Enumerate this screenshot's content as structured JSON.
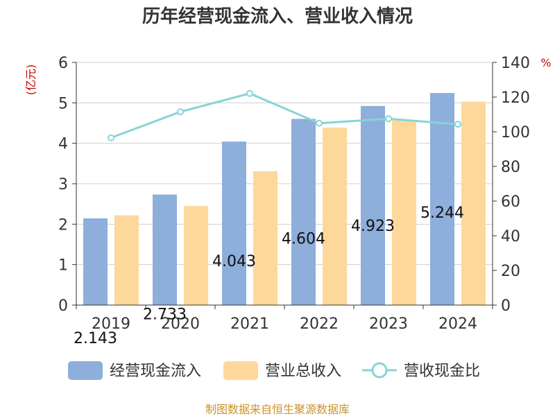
{
  "chart_data": {
    "type": "bar",
    "title": "历年经营现金流入、营业收入情况",
    "categories": [
      "2019",
      "2020",
      "2021",
      "2022",
      "2023",
      "2024"
    ],
    "series": [
      {
        "name": "经营现金流入",
        "kind": "bar",
        "axis": "left",
        "color": "#8eaedb",
        "values": [
          2.143,
          2.733,
          4.043,
          4.604,
          4.923,
          5.244
        ],
        "labels": [
          "2.143",
          "2.733",
          "4.043",
          "4.604",
          "4.923",
          "5.244"
        ]
      },
      {
        "name": "营业总收入",
        "kind": "bar",
        "axis": "left",
        "color": "#fdd89a",
        "values": [
          2.22,
          2.45,
          3.31,
          4.39,
          4.58,
          5.03
        ]
      },
      {
        "name": "营收现金比",
        "kind": "line",
        "axis": "right",
        "color": "#86d4d8",
        "values": [
          96.5,
          111.5,
          122.1,
          104.9,
          107.5,
          104.3
        ]
      }
    ],
    "y_left": {
      "unit": "(亿元)",
      "min": 0,
      "max": 6,
      "ticks": [
        "0",
        "1",
        "2",
        "3",
        "4",
        "5",
        "6"
      ]
    },
    "y_right": {
      "unit": "%",
      "min": 0,
      "max": 140,
      "ticks": [
        "0",
        "20",
        "40",
        "60",
        "80",
        "100",
        "120",
        "140"
      ]
    },
    "grid": true,
    "legend_position": "bottom"
  },
  "source": "制图数据来自恒生聚源数据库"
}
